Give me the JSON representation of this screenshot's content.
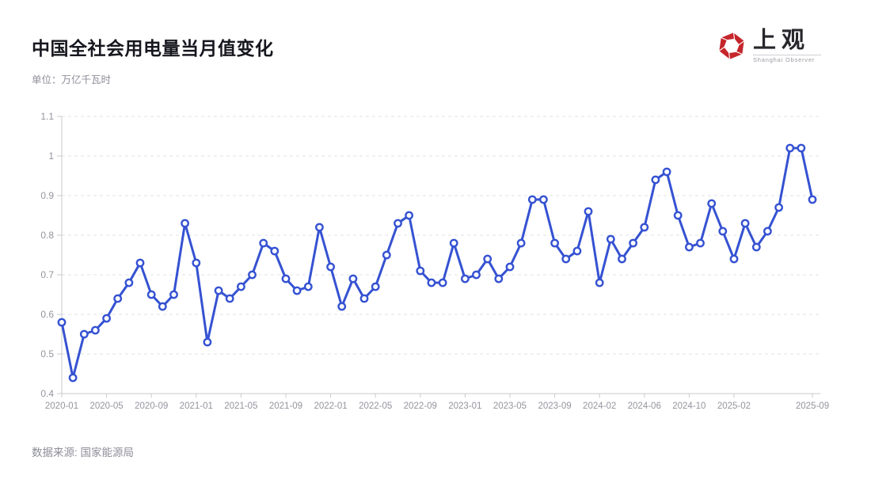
{
  "header": {
    "title": "中国全社会用电量当月值变化",
    "subtitle": "单位：万亿千瓦时"
  },
  "logo": {
    "name": "上观",
    "subtext": "Shanghai Observer",
    "color": "#c5262c"
  },
  "footer": {
    "source": "数据来源: 国家能源局"
  },
  "chart_data": {
    "type": "line",
    "title": "中国全社会用电量当月值变化",
    "unit": "万亿千瓦时",
    "legend": "none",
    "grid": "horizontal-dashed",
    "line_color": "#3552d2",
    "marker": "open-circle-white-fill",
    "axis_color": "#c9c9ce",
    "grid_color": "#e2e2e6",
    "tick_label_color": "#94949e",
    "ylim": [
      0.4,
      1.1
    ],
    "y_ticks": [
      0.4,
      0.5,
      0.6,
      0.7,
      0.8,
      0.9,
      1.0,
      1.1
    ],
    "y_tick_labels": [
      "0.4",
      "0.5",
      "0.6",
      "0.7",
      "0.8",
      "0.9",
      "1",
      "1.1"
    ],
    "x_tick_labels": [
      "2020-01",
      "2020-05",
      "2020-09",
      "2021-01",
      "2021-05",
      "2021-09",
      "2022-01",
      "2022-05",
      "2022-09",
      "2023-01",
      "2023-05",
      "2023-09",
      "2024-02",
      "2024-06",
      "2024-10",
      "2025-02",
      "2025-09"
    ],
    "x": [
      "2020-01",
      "2020-02",
      "2020-03",
      "2020-04",
      "2020-05",
      "2020-06",
      "2020-07",
      "2020-08",
      "2020-09",
      "2020-10",
      "2020-11",
      "2020-12",
      "2021-01",
      "2021-02",
      "2021-03",
      "2021-04",
      "2021-05",
      "2021-06",
      "2021-07",
      "2021-08",
      "2021-09",
      "2021-10",
      "2021-11",
      "2021-12",
      "2022-01",
      "2022-02",
      "2022-03",
      "2022-04",
      "2022-05",
      "2022-06",
      "2022-07",
      "2022-08",
      "2022-09",
      "2022-10",
      "2022-11",
      "2022-12",
      "2023-01",
      "2023-02",
      "2023-03",
      "2023-04",
      "2023-05",
      "2023-06",
      "2023-07",
      "2023-08",
      "2023-09",
      "2023-10",
      "2023-11",
      "2023-12",
      "2024-02",
      "2024-03",
      "2024-04",
      "2024-05",
      "2024-06",
      "2024-07",
      "2024-08",
      "2024-09",
      "2024-10",
      "2024-11",
      "2024-12",
      "2025-01",
      "2025-02",
      "2025-03",
      "2025-04",
      "2025-05",
      "2025-06",
      "2025-07",
      "2025-08",
      "2025-09"
    ],
    "values": [
      0.58,
      0.44,
      0.55,
      0.56,
      0.59,
      0.64,
      0.68,
      0.73,
      0.65,
      0.62,
      0.65,
      0.83,
      0.73,
      0.53,
      0.66,
      0.64,
      0.67,
      0.7,
      0.78,
      0.76,
      0.69,
      0.66,
      0.67,
      0.82,
      0.72,
      0.62,
      0.69,
      0.64,
      0.67,
      0.75,
      0.83,
      0.85,
      0.71,
      0.68,
      0.68,
      0.78,
      0.69,
      0.7,
      0.74,
      0.69,
      0.72,
      0.78,
      0.89,
      0.89,
      0.78,
      0.74,
      0.76,
      0.86,
      0.68,
      0.79,
      0.74,
      0.78,
      0.82,
      0.94,
      0.96,
      0.85,
      0.77,
      0.78,
      0.88,
      0.81,
      0.74,
      0.83,
      0.77,
      0.81,
      0.87,
      1.02,
      1.02,
      0.89
    ]
  }
}
